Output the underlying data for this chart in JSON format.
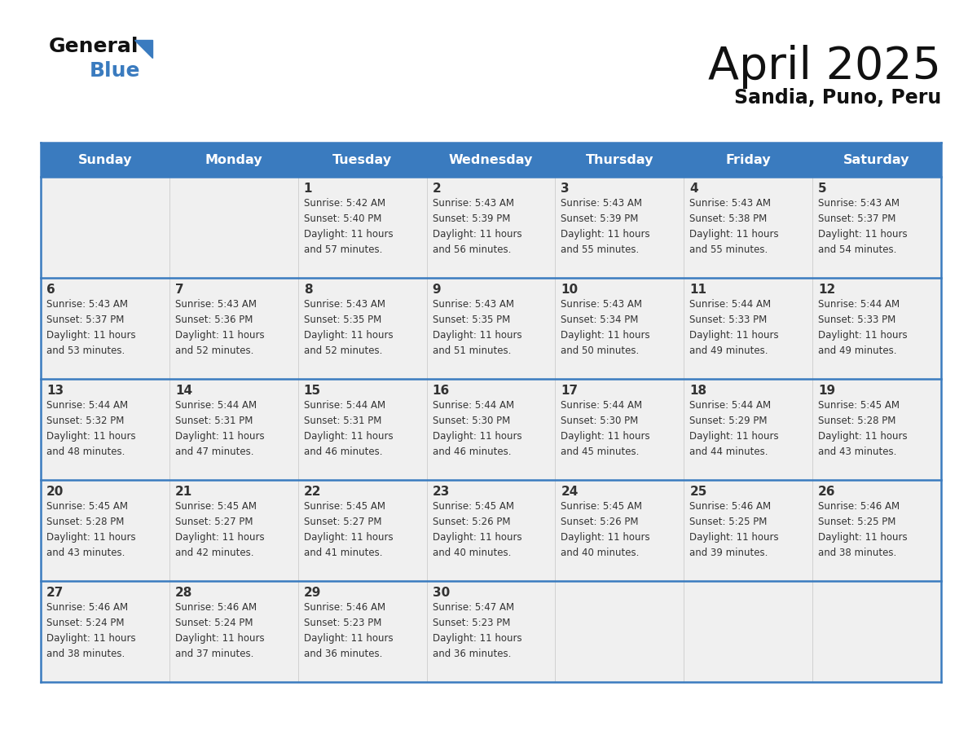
{
  "title": "April 2025",
  "subtitle": "Sandia, Puno, Peru",
  "header_color": "#3a7bbf",
  "header_text_color": "#ffffff",
  "cell_bg": "#f0f0f0",
  "cell_bg_empty": "#e8e8e8",
  "border_color": "#3a7bbf",
  "row_sep_color": "#3a7bbf",
  "text_color": "#333333",
  "days_of_week": [
    "Sunday",
    "Monday",
    "Tuesday",
    "Wednesday",
    "Thursday",
    "Friday",
    "Saturday"
  ],
  "weeks": [
    [
      {
        "day": "",
        "info": ""
      },
      {
        "day": "",
        "info": ""
      },
      {
        "day": "1",
        "info": "Sunrise: 5:42 AM\nSunset: 5:40 PM\nDaylight: 11 hours\nand 57 minutes."
      },
      {
        "day": "2",
        "info": "Sunrise: 5:43 AM\nSunset: 5:39 PM\nDaylight: 11 hours\nand 56 minutes."
      },
      {
        "day": "3",
        "info": "Sunrise: 5:43 AM\nSunset: 5:39 PM\nDaylight: 11 hours\nand 55 minutes."
      },
      {
        "day": "4",
        "info": "Sunrise: 5:43 AM\nSunset: 5:38 PM\nDaylight: 11 hours\nand 55 minutes."
      },
      {
        "day": "5",
        "info": "Sunrise: 5:43 AM\nSunset: 5:37 PM\nDaylight: 11 hours\nand 54 minutes."
      }
    ],
    [
      {
        "day": "6",
        "info": "Sunrise: 5:43 AM\nSunset: 5:37 PM\nDaylight: 11 hours\nand 53 minutes."
      },
      {
        "day": "7",
        "info": "Sunrise: 5:43 AM\nSunset: 5:36 PM\nDaylight: 11 hours\nand 52 minutes."
      },
      {
        "day": "8",
        "info": "Sunrise: 5:43 AM\nSunset: 5:35 PM\nDaylight: 11 hours\nand 52 minutes."
      },
      {
        "day": "9",
        "info": "Sunrise: 5:43 AM\nSunset: 5:35 PM\nDaylight: 11 hours\nand 51 minutes."
      },
      {
        "day": "10",
        "info": "Sunrise: 5:43 AM\nSunset: 5:34 PM\nDaylight: 11 hours\nand 50 minutes."
      },
      {
        "day": "11",
        "info": "Sunrise: 5:44 AM\nSunset: 5:33 PM\nDaylight: 11 hours\nand 49 minutes."
      },
      {
        "day": "12",
        "info": "Sunrise: 5:44 AM\nSunset: 5:33 PM\nDaylight: 11 hours\nand 49 minutes."
      }
    ],
    [
      {
        "day": "13",
        "info": "Sunrise: 5:44 AM\nSunset: 5:32 PM\nDaylight: 11 hours\nand 48 minutes."
      },
      {
        "day": "14",
        "info": "Sunrise: 5:44 AM\nSunset: 5:31 PM\nDaylight: 11 hours\nand 47 minutes."
      },
      {
        "day": "15",
        "info": "Sunrise: 5:44 AM\nSunset: 5:31 PM\nDaylight: 11 hours\nand 46 minutes."
      },
      {
        "day": "16",
        "info": "Sunrise: 5:44 AM\nSunset: 5:30 PM\nDaylight: 11 hours\nand 46 minutes."
      },
      {
        "day": "17",
        "info": "Sunrise: 5:44 AM\nSunset: 5:30 PM\nDaylight: 11 hours\nand 45 minutes."
      },
      {
        "day": "18",
        "info": "Sunrise: 5:44 AM\nSunset: 5:29 PM\nDaylight: 11 hours\nand 44 minutes."
      },
      {
        "day": "19",
        "info": "Sunrise: 5:45 AM\nSunset: 5:28 PM\nDaylight: 11 hours\nand 43 minutes."
      }
    ],
    [
      {
        "day": "20",
        "info": "Sunrise: 5:45 AM\nSunset: 5:28 PM\nDaylight: 11 hours\nand 43 minutes."
      },
      {
        "day": "21",
        "info": "Sunrise: 5:45 AM\nSunset: 5:27 PM\nDaylight: 11 hours\nand 42 minutes."
      },
      {
        "day": "22",
        "info": "Sunrise: 5:45 AM\nSunset: 5:27 PM\nDaylight: 11 hours\nand 41 minutes."
      },
      {
        "day": "23",
        "info": "Sunrise: 5:45 AM\nSunset: 5:26 PM\nDaylight: 11 hours\nand 40 minutes."
      },
      {
        "day": "24",
        "info": "Sunrise: 5:45 AM\nSunset: 5:26 PM\nDaylight: 11 hours\nand 40 minutes."
      },
      {
        "day": "25",
        "info": "Sunrise: 5:46 AM\nSunset: 5:25 PM\nDaylight: 11 hours\nand 39 minutes."
      },
      {
        "day": "26",
        "info": "Sunrise: 5:46 AM\nSunset: 5:25 PM\nDaylight: 11 hours\nand 38 minutes."
      }
    ],
    [
      {
        "day": "27",
        "info": "Sunrise: 5:46 AM\nSunset: 5:24 PM\nDaylight: 11 hours\nand 38 minutes."
      },
      {
        "day": "28",
        "info": "Sunrise: 5:46 AM\nSunset: 5:24 PM\nDaylight: 11 hours\nand 37 minutes."
      },
      {
        "day": "29",
        "info": "Sunrise: 5:46 AM\nSunset: 5:23 PM\nDaylight: 11 hours\nand 36 minutes."
      },
      {
        "day": "30",
        "info": "Sunrise: 5:47 AM\nSunset: 5:23 PM\nDaylight: 11 hours\nand 36 minutes."
      },
      {
        "day": "",
        "info": ""
      },
      {
        "day": "",
        "info": ""
      },
      {
        "day": "",
        "info": ""
      }
    ]
  ],
  "logo_text_general": "General",
  "logo_text_blue": "Blue",
  "logo_color_general": "#111111",
  "logo_color_blue": "#3a7bbf",
  "logo_triangle_color": "#3a7bbf"
}
